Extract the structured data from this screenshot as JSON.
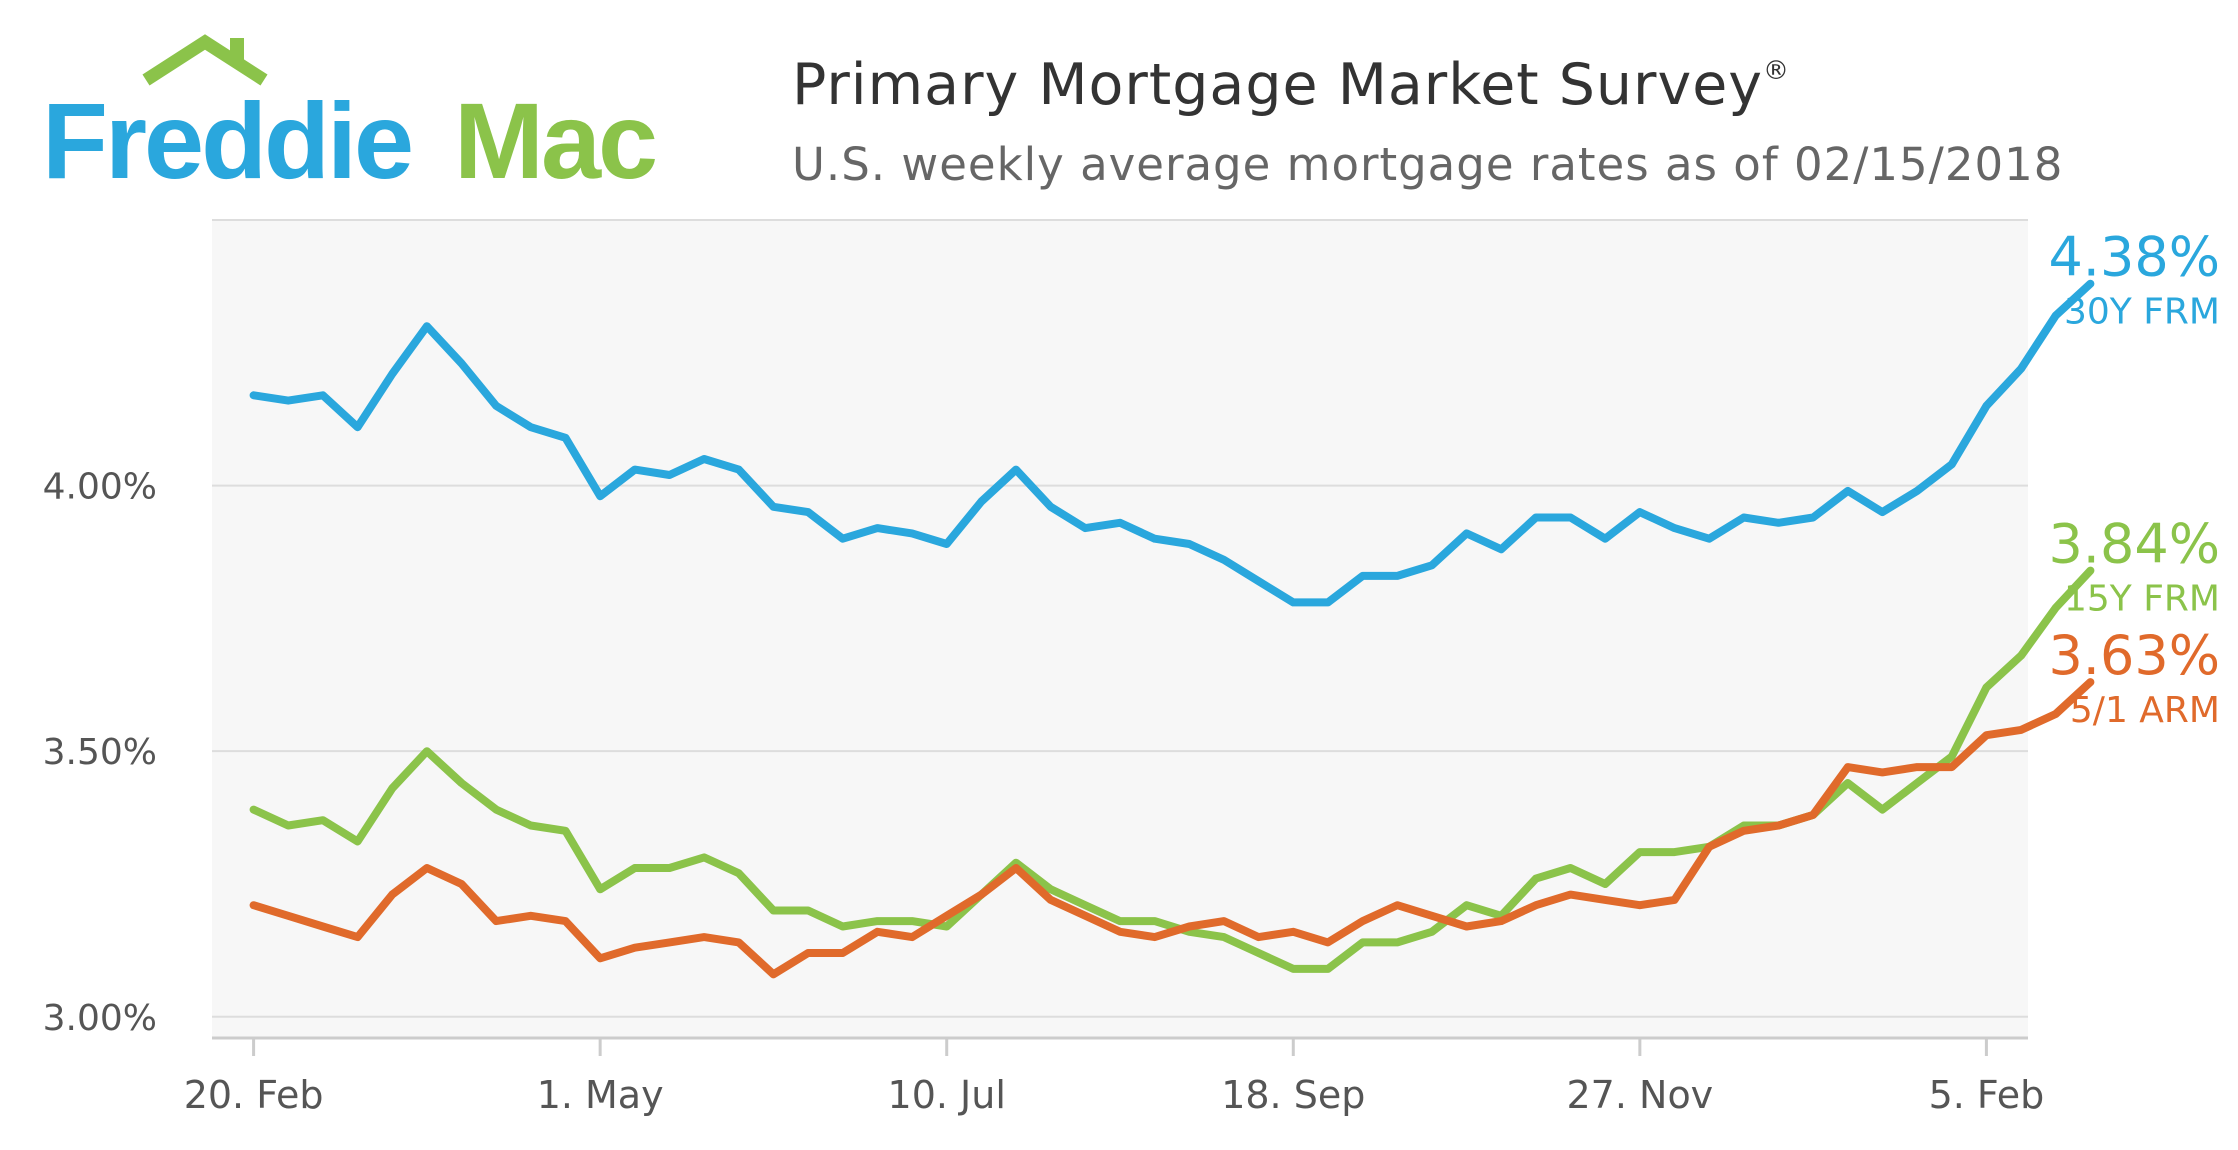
{
  "header": {
    "logo_text_1": "Freddie",
    "logo_text_2": "Mac",
    "title": "Primary Mortgage Market Survey",
    "title_mark": "®",
    "subtitle": "U.S. weekly average mortgage rates as of 02/15/2018"
  },
  "colors": {
    "blue": "#2aa7dd",
    "green": "#8bc34a",
    "orange": "#e06a2b"
  },
  "chart_data": {
    "type": "line",
    "y_ticks": [
      {
        "value": 3.0,
        "label": "3.00%"
      },
      {
        "value": 3.5,
        "label": "3.50%"
      },
      {
        "value": 4.0,
        "label": "4.00%"
      }
    ],
    "x_ticks": [
      {
        "week": 0,
        "label": "20. Feb"
      },
      {
        "week": 10,
        "label": "1. May"
      },
      {
        "week": 20,
        "label": "10. Jul"
      },
      {
        "week": 30,
        "label": "18. Sep"
      },
      {
        "week": 40,
        "label": "27. Nov"
      },
      {
        "week": 50,
        "label": "5. Feb"
      }
    ],
    "xlim": [
      -1.2,
      51.2
    ],
    "ylim": [
      2.96,
      4.5
    ],
    "grid": true,
    "series": [
      {
        "name": "30Y FRM",
        "color": "#2aa7dd",
        "end_label": "4.38%",
        "values": [
          4.17,
          4.16,
          4.17,
          4.11,
          4.21,
          4.3,
          4.23,
          4.15,
          4.11,
          4.09,
          3.98,
          4.03,
          4.02,
          4.05,
          4.03,
          3.96,
          3.95,
          3.9,
          3.92,
          3.91,
          3.89,
          3.97,
          4.03,
          3.96,
          3.92,
          3.93,
          3.9,
          3.89,
          3.86,
          3.82,
          3.78,
          3.78,
          3.83,
          3.83,
          3.85,
          3.91,
          3.88,
          3.94,
          3.94,
          3.9,
          3.95,
          3.92,
          3.9,
          3.94,
          3.93,
          3.94,
          3.99,
          3.95,
          3.99,
          4.04,
          4.15,
          4.22,
          4.32,
          4.38
        ]
      },
      {
        "name": "15Y FRM",
        "color": "#8bc34a",
        "end_label": "3.84%",
        "values": [
          3.39,
          3.36,
          3.37,
          3.33,
          3.43,
          3.5,
          3.44,
          3.39,
          3.36,
          3.35,
          3.24,
          3.28,
          3.28,
          3.3,
          3.27,
          3.2,
          3.2,
          3.17,
          3.18,
          3.18,
          3.17,
          3.23,
          3.29,
          3.24,
          3.21,
          3.18,
          3.18,
          3.16,
          3.15,
          3.12,
          3.09,
          3.09,
          3.14,
          3.14,
          3.16,
          3.21,
          3.19,
          3.26,
          3.28,
          3.25,
          3.31,
          3.31,
          3.32,
          3.36,
          3.36,
          3.38,
          3.44,
          3.39,
          3.44,
          3.49,
          3.62,
          3.68,
          3.77,
          3.84
        ]
      },
      {
        "name": "5/1 ARM",
        "color": "#e06a2b",
        "end_label": "3.63%",
        "values": [
          3.21,
          3.19,
          3.17,
          3.15,
          3.23,
          3.28,
          3.25,
          3.18,
          3.19,
          3.18,
          3.11,
          3.13,
          3.14,
          3.15,
          3.14,
          3.08,
          3.12,
          3.12,
          3.16,
          3.15,
          3.19,
          3.23,
          3.28,
          3.22,
          3.19,
          3.16,
          3.15,
          3.17,
          3.18,
          3.15,
          3.16,
          3.14,
          3.18,
          3.21,
          3.19,
          3.17,
          3.18,
          3.21,
          3.23,
          3.22,
          3.21,
          3.22,
          3.32,
          3.35,
          3.36,
          3.38,
          3.47,
          3.46,
          3.47,
          3.47,
          3.53,
          3.54,
          3.57,
          3.63
        ]
      }
    ]
  }
}
